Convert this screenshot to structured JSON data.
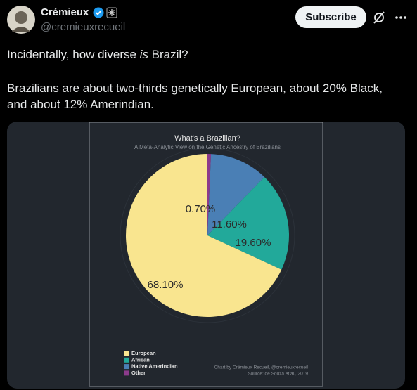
{
  "author": {
    "name": "Crémieux",
    "handle": "@cremieuxrecueil"
  },
  "subscribe_button": "Subscribe",
  "tweet": {
    "line1": [
      "Incidentally, how diverse ",
      "is",
      " Brazil?"
    ],
    "line2": "Brazilians are about two-thirds genetically European, about 20% Black,",
    "line3": "and about 12% Amerindian."
  },
  "chart_data": {
    "type": "pie",
    "title": "What's a Brazilian?",
    "subtitle": "A Meta-Analytic View on the Genetic Ancestry of Brazilians",
    "categories": [
      "European",
      "African",
      "Native Amerindian",
      "Other"
    ],
    "values": [
      68.1,
      19.6,
      11.6,
      0.7
    ],
    "value_labels": [
      "68.10%",
      "19.60%",
      "11.60%",
      "0.70%"
    ],
    "colors": [
      "#f9e58f",
      "#22a99a",
      "#4a7fb5",
      "#8c3b8c"
    ],
    "credit": "Chart by Crémieux Recueil, @cremieuxrecueil",
    "source": "Source: de Souza et al., 2019"
  }
}
